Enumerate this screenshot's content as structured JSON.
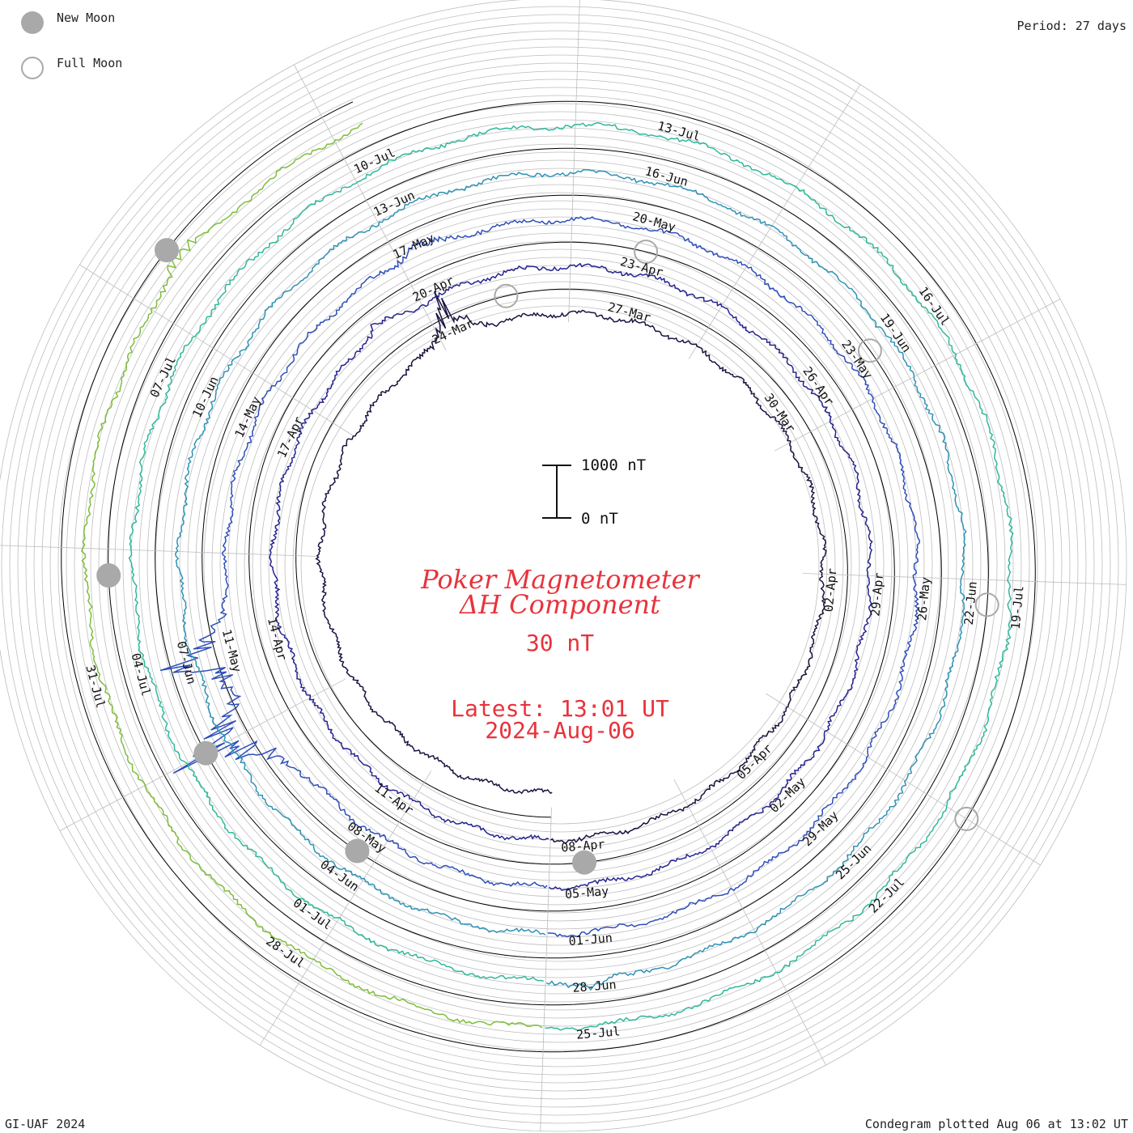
{
  "header": {
    "legend": [
      {
        "label": "New Moon",
        "kind": "new"
      },
      {
        "label": "Full Moon",
        "kind": "full"
      }
    ],
    "period": "Period: 27 days"
  },
  "footer": {
    "credit": "GI-UAF 2024",
    "plotted": "Condegram plotted Aug 06 at 13:02 UT"
  },
  "colors": {
    "title": "#e8333c",
    "grid": "#bdbdbd",
    "moon": "#a9a9a9",
    "rotations": [
      "#1a1340",
      "#25238f",
      "#2e4fbb",
      "#2e92b4",
      "#2fb89a",
      "#7dbd3a",
      "#b39a20",
      "#c35a14",
      "#b51d10"
    ]
  },
  "chart_data": {
    "type": "condegram-spiral",
    "title_line1": "Poker Magnetometer",
    "title_line2": "ΔH Component",
    "scale_text": "30 nT",
    "latest_line1": "Latest: 13:01 UT",
    "latest_line2": "2024-Aug-06",
    "component": "ΔH",
    "period_days": 27,
    "scale_bar": {
      "top_label": "1000 nT",
      "bottom_label": "0 nT"
    },
    "date_labels": [
      "24-Mar",
      "27-Mar",
      "30-Mar",
      "02-Apr",
      "05-Apr",
      "08-Apr",
      "11-Apr",
      "14-Apr",
      "17-Apr",
      "20-Apr",
      "23-Apr",
      "26-Apr",
      "29-Apr",
      "02-May",
      "05-May",
      "08-May",
      "11-May",
      "14-May",
      "17-May",
      "20-May",
      "23-May",
      "26-May",
      "29-May",
      "01-Jun",
      "04-Jun",
      "07-Jun",
      "10-Jun",
      "13-Jun",
      "16-Jun",
      "19-Jun",
      "22-Jun",
      "25-Jun",
      "28-Jun",
      "01-Jul",
      "04-Jul",
      "07-Jul",
      "10-Jul",
      "13-Jul",
      "16-Jul",
      "19-Jul",
      "22-Jul",
      "25-Jul",
      "28-Jul",
      "31-Jul"
    ],
    "moon_phases": [
      {
        "date": "2024-03-25",
        "phase": "full"
      },
      {
        "date": "2024-04-08",
        "phase": "new"
      },
      {
        "date": "2024-04-23",
        "phase": "full"
      },
      {
        "date": "2024-05-08",
        "phase": "new"
      },
      {
        "date": "2024-05-23",
        "phase": "full"
      },
      {
        "date": "2024-06-06",
        "phase": "new"
      },
      {
        "date": "2024-06-22",
        "phase": "full"
      },
      {
        "date": "2024-07-05",
        "phase": "new"
      },
      {
        "date": "2024-07-21",
        "phase": "full"
      },
      {
        "date": "2024-08-04",
        "phase": "new"
      }
    ],
    "disturbances": [
      {
        "date": "2024-03-24",
        "delta_h_nT": -1100
      },
      {
        "date": "2024-04-19",
        "delta_h_nT": -300
      },
      {
        "date": "2024-05-10",
        "delta_h_nT": -2300
      },
      {
        "date": "2024-05-11",
        "delta_h_nT": -1800
      },
      {
        "date": "2024-05-17",
        "delta_h_nT": -250
      },
      {
        "date": "2024-06-28",
        "delta_h_nT": -200
      },
      {
        "date": "2024-08-04",
        "delta_h_nT": -450
      }
    ]
  }
}
